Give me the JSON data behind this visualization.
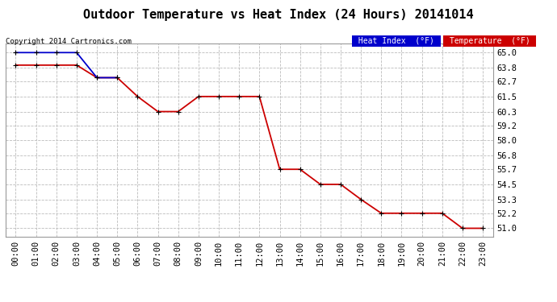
{
  "title": "Outdoor Temperature vs Heat Index (24 Hours) 20141014",
  "copyright": "Copyright 2014 Cartronics.com",
  "x_labels": [
    "00:00",
    "01:00",
    "02:00",
    "03:00",
    "04:00",
    "05:00",
    "06:00",
    "07:00",
    "08:00",
    "09:00",
    "10:00",
    "11:00",
    "12:00",
    "13:00",
    "14:00",
    "15:00",
    "16:00",
    "17:00",
    "18:00",
    "19:00",
    "20:00",
    "21:00",
    "22:00",
    "23:00"
  ],
  "temperature": [
    64.0,
    64.0,
    64.0,
    64.0,
    63.0,
    63.0,
    61.5,
    60.3,
    60.3,
    61.5,
    61.5,
    61.5,
    61.5,
    55.7,
    55.7,
    54.5,
    54.5,
    53.3,
    52.2,
    52.2,
    52.2,
    52.2,
    51.0,
    51.0
  ],
  "heat_index_x": [
    0,
    1,
    2,
    3,
    4,
    5
  ],
  "heat_index_y": [
    65.0,
    65.0,
    65.0,
    65.0,
    63.0,
    63.0
  ],
  "temp_color": "#cc0000",
  "heat_color": "#0000cc",
  "grid_color": "#bbbbbb",
  "bg_color": "#ffffff",
  "yticks": [
    65.0,
    63.8,
    62.7,
    61.5,
    60.3,
    59.2,
    58.0,
    56.8,
    55.7,
    54.5,
    53.3,
    52.2,
    51.0
  ],
  "ylim_min": 50.3,
  "ylim_max": 65.7,
  "title_fontsize": 11,
  "axis_fontsize": 7.5,
  "copyright_fontsize": 6.5,
  "legend_fontsize": 7,
  "line_width": 1.3,
  "marker_size": 5
}
